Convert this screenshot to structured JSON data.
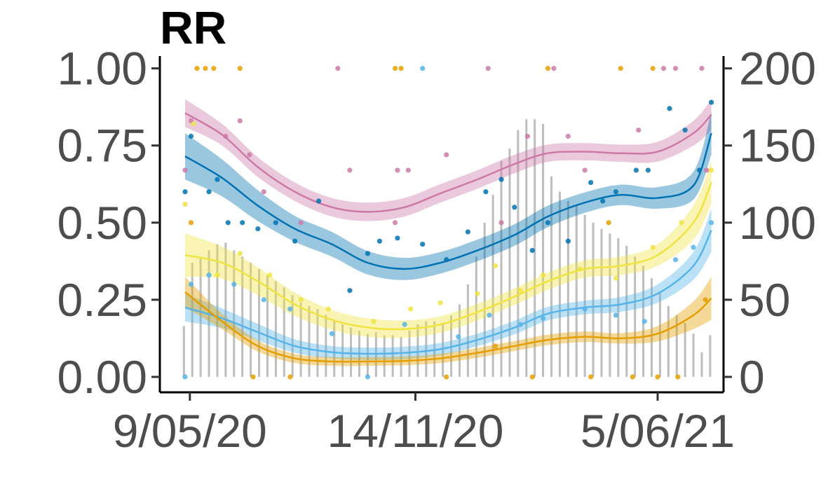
{
  "chart_data": {
    "type": "line",
    "title": "RR",
    "xlabel": "",
    "ylabel": "",
    "x_axis": {
      "type": "date",
      "range": [
        "2020-05-05",
        "2021-07-22"
      ],
      "ticks": [
        {
          "date": "2020-05-09",
          "label": "9/05/20"
        },
        {
          "date": "2020-11-14",
          "label": "14/11/20"
        },
        {
          "date": "2021-06-05",
          "label": "5/06/21"
        }
      ]
    },
    "y_left": {
      "range": [
        -0.05,
        1.04
      ],
      "ticks": [
        {
          "value": 0.0,
          "label": "0.00"
        },
        {
          "value": 0.25,
          "label": "0.25"
        },
        {
          "value": 0.5,
          "label": "0.50"
        },
        {
          "value": 0.75,
          "label": "0.75"
        },
        {
          "value": 1.0,
          "label": "1.00"
        }
      ]
    },
    "y_right": {
      "range": [
        -10,
        208
      ],
      "ticks": [
        {
          "value": 0,
          "label": "0"
        },
        {
          "value": 50,
          "label": "50"
        },
        {
          "value": 100,
          "label": "100"
        },
        {
          "value": 150,
          "label": "150"
        },
        {
          "value": 200,
          "label": "200"
        }
      ]
    },
    "grid": false,
    "legend": "none",
    "bars": {
      "color": "#bdbdbd",
      "axis": "right",
      "dates": [
        "2020-05-04",
        "2020-05-11",
        "2020-05-18",
        "2020-05-25",
        "2020-06-01",
        "2020-06-08",
        "2020-06-15",
        "2020-06-22",
        "2020-06-29",
        "2020-07-06",
        "2020-07-13",
        "2020-07-20",
        "2020-07-27",
        "2020-08-03",
        "2020-08-10",
        "2020-08-17",
        "2020-08-24",
        "2020-08-31",
        "2020-09-07",
        "2020-09-14",
        "2020-09-21",
        "2020-09-28",
        "2020-10-05",
        "2020-10-12",
        "2020-10-19",
        "2020-10-26",
        "2020-11-02",
        "2020-11-09",
        "2020-11-16",
        "2020-11-23",
        "2020-11-30",
        "2020-12-07",
        "2020-12-14",
        "2020-12-21",
        "2020-12-28",
        "2021-01-04",
        "2021-01-11",
        "2021-01-18",
        "2021-01-25",
        "2021-02-01",
        "2021-02-08",
        "2021-02-15",
        "2021-02-22",
        "2021-03-01",
        "2021-03-08",
        "2021-03-15",
        "2021-03-22",
        "2021-03-29",
        "2021-04-05",
        "2021-04-12",
        "2021-04-19",
        "2021-04-26",
        "2021-05-03",
        "2021-05-10",
        "2021-05-17",
        "2021-05-24",
        "2021-05-31",
        "2021-06-07",
        "2021-06-14",
        "2021-06-21",
        "2021-06-28",
        "2021-07-05",
        "2021-07-12",
        "2021-07-19"
      ],
      "values": [
        33,
        74,
        78,
        82,
        86,
        87,
        82,
        78,
        74,
        70,
        66,
        62,
        58,
        53,
        48,
        46,
        44,
        40,
        36,
        34,
        32,
        30,
        28,
        29,
        27,
        27,
        26,
        30,
        34,
        36,
        36,
        35,
        40,
        47,
        60,
        78,
        100,
        118,
        140,
        148,
        160,
        167,
        167,
        164,
        130,
        120,
        114,
        111,
        105,
        100,
        96,
        93,
        90,
        85,
        78,
        72,
        64,
        55,
        46,
        40,
        35,
        28,
        16,
        27
      ]
    },
    "series": [
      {
        "color": "#cc79a7",
        "x": [
          "2020-05-05",
          "2020-06-05",
          "2020-07-05",
          "2020-08-05",
          "2020-09-05",
          "2020-10-05",
          "2020-11-05",
          "2020-12-05",
          "2021-01-05",
          "2021-02-05",
          "2021-03-05",
          "2021-04-05",
          "2021-05-05",
          "2021-06-05",
          "2021-07-05",
          "2021-07-20"
        ],
        "y": [
          0.855,
          0.785,
          0.68,
          0.6,
          0.55,
          0.535,
          0.55,
          0.595,
          0.64,
          0.69,
          0.725,
          0.73,
          0.725,
          0.73,
          0.79,
          0.85
        ],
        "band": [
          0.045,
          0.035,
          0.032,
          0.03,
          0.03,
          0.03,
          0.03,
          0.03,
          0.03,
          0.03,
          0.028,
          0.028,
          0.028,
          0.032,
          0.04,
          0.05
        ],
        "points": [
          [
            "2020-05-05",
            0.67
          ],
          [
            "2020-05-10",
            0.83
          ],
          [
            "2020-06-08",
            0.78
          ],
          [
            "2020-06-20",
            0.83
          ],
          [
            "2020-06-28",
            0.72
          ],
          [
            "2020-07-10",
            0.6
          ],
          [
            "2020-08-10",
            0.5
          ],
          [
            "2020-09-10",
            1.0
          ],
          [
            "2020-09-20",
            0.67
          ],
          [
            "2020-10-28",
            0.5
          ],
          [
            "2020-10-30",
            0.67
          ],
          [
            "2020-11-08",
            0.67
          ],
          [
            "2020-12-10",
            0.72
          ],
          [
            "2021-01-14",
            1.0
          ],
          [
            "2021-01-25",
            0.5
          ],
          [
            "2021-02-16",
            0.78
          ],
          [
            "2021-03-10",
            1.0
          ],
          [
            "2021-03-22",
            0.78
          ],
          [
            "2021-04-05",
            0.67
          ],
          [
            "2021-05-20",
            0.8
          ],
          [
            "2021-06-10",
            1.0
          ],
          [
            "2021-07-12",
            1.0
          ],
          [
            "2021-07-16",
            0.67
          ],
          [
            "2021-06-20",
            1.0
          ]
        ]
      },
      {
        "color": "#0072b2",
        "x": [
          "2020-05-05",
          "2020-06-05",
          "2020-07-05",
          "2020-08-05",
          "2020-09-05",
          "2020-10-05",
          "2020-11-05",
          "2020-12-05",
          "2021-01-05",
          "2021-02-05",
          "2021-03-05",
          "2021-04-05",
          "2021-05-05",
          "2021-06-05",
          "2021-07-05",
          "2021-07-20"
        ],
        "y": [
          0.715,
          0.645,
          0.555,
          0.48,
          0.43,
          0.37,
          0.35,
          0.37,
          0.41,
          0.46,
          0.52,
          0.565,
          0.59,
          0.58,
          0.62,
          0.79
        ],
        "band": [
          0.075,
          0.06,
          0.05,
          0.042,
          0.04,
          0.038,
          0.036,
          0.035,
          0.035,
          0.035,
          0.035,
          0.033,
          0.033,
          0.035,
          0.045,
          0.07
        ],
        "points": [
          [
            "2020-05-05",
            0.6
          ],
          [
            "2020-05-10",
            0.78
          ],
          [
            "2020-05-25",
            0.6
          ],
          [
            "2020-06-01",
            0.64
          ],
          [
            "2020-06-10",
            0.5
          ],
          [
            "2020-06-22",
            0.5
          ],
          [
            "2020-07-05",
            0.48
          ],
          [
            "2020-07-20",
            0.5
          ],
          [
            "2020-08-05",
            0.44
          ],
          [
            "2020-08-25",
            0.57
          ],
          [
            "2020-09-20",
            0.28
          ],
          [
            "2020-10-05",
            0.4
          ],
          [
            "2020-10-15",
            0.44
          ],
          [
            "2020-10-30",
            0.45
          ],
          [
            "2020-11-20",
            0.43
          ],
          [
            "2020-12-10",
            0.38
          ],
          [
            "2020-12-28",
            0.47
          ],
          [
            "2021-01-12",
            0.6
          ],
          [
            "2021-01-25",
            0.64
          ],
          [
            "2021-02-05",
            0.55
          ],
          [
            "2021-02-20",
            0.41
          ],
          [
            "2021-03-05",
            0.5
          ],
          [
            "2021-03-22",
            0.44
          ],
          [
            "2021-04-10",
            0.63
          ],
          [
            "2021-04-20",
            0.57
          ],
          [
            "2021-05-01",
            0.6
          ],
          [
            "2021-05-18",
            0.67
          ],
          [
            "2021-05-28",
            0.67
          ],
          [
            "2021-06-15",
            0.87
          ],
          [
            "2021-06-28",
            0.8
          ],
          [
            "2021-07-10",
            0.67
          ],
          [
            "2021-07-20",
            0.89
          ]
        ]
      },
      {
        "color": "#f0e442",
        "x": [
          "2020-05-05",
          "2020-06-05",
          "2020-07-05",
          "2020-08-05",
          "2020-09-05",
          "2020-10-05",
          "2020-11-05",
          "2020-12-05",
          "2021-01-05",
          "2021-02-05",
          "2021-03-05",
          "2021-04-05",
          "2021-05-05",
          "2021-06-05",
          "2021-07-05",
          "2021-07-20"
        ],
        "y": [
          0.395,
          0.37,
          0.31,
          0.235,
          0.185,
          0.16,
          0.155,
          0.17,
          0.21,
          0.26,
          0.31,
          0.35,
          0.36,
          0.395,
          0.5,
          0.63
        ],
        "band": [
          0.07,
          0.052,
          0.045,
          0.038,
          0.032,
          0.03,
          0.028,
          0.027,
          0.027,
          0.027,
          0.028,
          0.028,
          0.03,
          0.035,
          0.055,
          0.07
        ],
        "points": [
          [
            "2020-05-05",
            0.56
          ],
          [
            "2020-05-12",
            0.82
          ],
          [
            "2020-06-01",
            0.33
          ],
          [
            "2020-06-20",
            0.4
          ],
          [
            "2020-07-15",
            0.33
          ],
          [
            "2020-08-10",
            0.25
          ],
          [
            "2020-09-02",
            0.22
          ],
          [
            "2020-10-10",
            0.18
          ],
          [
            "2020-11-10",
            0.22
          ],
          [
            "2020-12-05",
            0.24
          ],
          [
            "2021-01-05",
            0.27
          ],
          [
            "2021-01-20",
            0.36
          ],
          [
            "2021-02-10",
            0.28
          ],
          [
            "2021-03-01",
            0.33
          ],
          [
            "2021-04-01",
            0.35
          ],
          [
            "2021-05-01",
            0.32
          ],
          [
            "2021-06-01",
            0.42
          ],
          [
            "2021-06-25",
            0.5
          ],
          [
            "2021-07-20",
            0.67
          ]
        ]
      },
      {
        "color": "#56b4e9",
        "x": [
          "2020-05-05",
          "2020-06-05",
          "2020-07-05",
          "2020-08-05",
          "2020-09-05",
          "2020-10-05",
          "2020-11-05",
          "2020-12-05",
          "2021-01-05",
          "2021-02-05",
          "2021-03-05",
          "2021-04-05",
          "2021-05-05",
          "2021-06-05",
          "2021-07-05",
          "2021-07-20"
        ],
        "y": [
          0.225,
          0.19,
          0.145,
          0.1,
          0.08,
          0.075,
          0.078,
          0.09,
          0.12,
          0.16,
          0.205,
          0.225,
          0.235,
          0.27,
          0.36,
          0.475
        ],
        "band": [
          0.045,
          0.032,
          0.027,
          0.022,
          0.02,
          0.02,
          0.02,
          0.02,
          0.02,
          0.022,
          0.022,
          0.022,
          0.024,
          0.03,
          0.045,
          0.07
        ],
        "points": [
          [
            "2020-05-05",
            0.0
          ],
          [
            "2020-05-10",
            0.3
          ],
          [
            "2020-05-25",
            0.33
          ],
          [
            "2020-06-15",
            0.3
          ],
          [
            "2020-07-10",
            0.25
          ],
          [
            "2020-08-01",
            0.22
          ],
          [
            "2020-09-05",
            0.14
          ],
          [
            "2020-10-05",
            0.0
          ],
          [
            "2020-11-05",
            0.17
          ],
          [
            "2020-11-20",
            1.0
          ],
          [
            "2020-12-20",
            0.13
          ],
          [
            "2021-01-15",
            0.2
          ],
          [
            "2021-02-10",
            0.17
          ],
          [
            "2021-03-01",
            0.19
          ],
          [
            "2021-04-05",
            0.22
          ],
          [
            "2021-05-01",
            0.2
          ],
          [
            "2021-05-25",
            0.18
          ],
          [
            "2021-06-20",
            0.38
          ],
          [
            "2021-07-05",
            0.42
          ],
          [
            "2021-07-20",
            0.5
          ]
        ]
      },
      {
        "color": "#e69f00",
        "x": [
          "2020-05-05",
          "2020-06-05",
          "2020-07-05",
          "2020-08-05",
          "2020-09-05",
          "2020-10-05",
          "2020-11-05",
          "2020-12-05",
          "2021-01-05",
          "2021-02-05",
          "2021-03-05",
          "2021-04-05",
          "2021-05-05",
          "2021-06-05",
          "2021-07-05",
          "2021-07-20"
        ],
        "y": [
          0.275,
          0.18,
          0.1,
          0.06,
          0.05,
          0.05,
          0.052,
          0.06,
          0.078,
          0.1,
          0.12,
          0.13,
          0.125,
          0.14,
          0.2,
          0.255
        ],
        "band": [
          0.05,
          0.025,
          0.018,
          0.015,
          0.014,
          0.014,
          0.014,
          0.015,
          0.016,
          0.016,
          0.017,
          0.017,
          0.017,
          0.025,
          0.045,
          0.07
        ],
        "points": [
          [
            "2020-05-10",
            0.5
          ],
          [
            "2020-05-15",
            1.0
          ],
          [
            "2020-05-22",
            1.0
          ],
          [
            "2020-05-29",
            1.0
          ],
          [
            "2020-06-20",
            1.0
          ],
          [
            "2020-07-01",
            0.0
          ],
          [
            "2020-08-01",
            0.0
          ],
          [
            "2020-10-28",
            1.0
          ],
          [
            "2020-11-02",
            1.0
          ],
          [
            "2020-12-10",
            0.0
          ],
          [
            "2021-01-20",
            0.1
          ],
          [
            "2021-02-20",
            0.0
          ],
          [
            "2021-03-05",
            1.0
          ],
          [
            "2021-04-10",
            0.0
          ],
          [
            "2021-04-25",
            0.5
          ],
          [
            "2021-05-05",
            1.0
          ],
          [
            "2021-05-15",
            0.0
          ],
          [
            "2021-06-01",
            1.0
          ],
          [
            "2021-06-05",
            0.0
          ],
          [
            "2021-06-22",
            0.0
          ],
          [
            "2021-07-15",
            0.25
          ]
        ]
      }
    ]
  }
}
